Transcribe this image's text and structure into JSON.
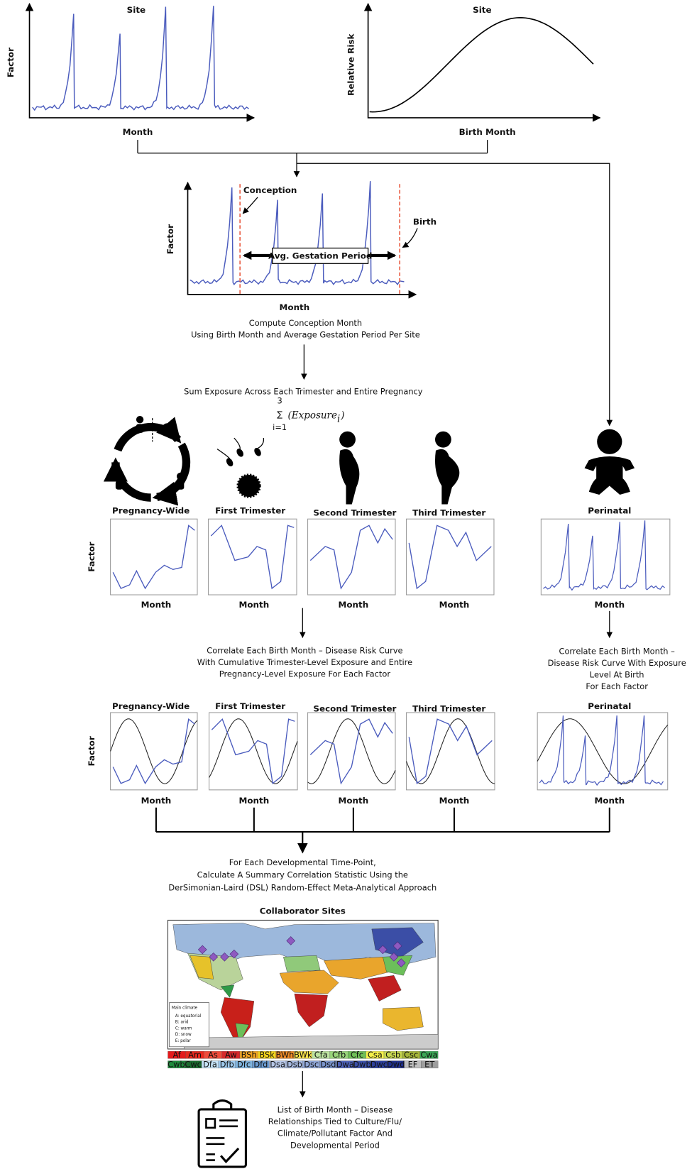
{
  "panel_a": {
    "title": "Site",
    "y_label": "Factor",
    "x_label": "Month"
  },
  "panel_b": {
    "title": "Site",
    "y_label": "Relative Risk",
    "x_label": "Birth Month"
  },
  "gestation_panel": {
    "y_label": "Factor",
    "x_label": "Month",
    "conception": "Conception",
    "birth": "Birth",
    "period": "Avg. Gestation Period"
  },
  "step1": [
    "Compute Conception Month",
    "Using Birth Month and Average Gestation Period Per Site"
  ],
  "step2": "Sum Exposure Across Each Trimester and Entire Pregnancy",
  "formula": {
    "symbol": "∑",
    "upper": "3",
    "lower": "i=1",
    "term": "(Exposure",
    "subscript": "i",
    "close": ")"
  },
  "exposure_panels": {
    "y_label": "Factor",
    "panels": [
      {
        "title": "Pregnancy-Wide",
        "x_label": "Month"
      },
      {
        "title": "First Trimester",
        "x_label": "Month"
      },
      {
        "title": "Second Trimester",
        "x_label": "Month"
      },
      {
        "title": "Third Trimester",
        "x_label": "Month"
      },
      {
        "title": "Perinatal",
        "x_label": "Month"
      }
    ]
  },
  "step3": [
    "Correlate Each Birth Month – Disease Risk Curve",
    "With Cumulative Trimester-Level Exposure and Entire",
    "Pregnancy-Level Exposure For Each Factor"
  ],
  "step3_perinatal": [
    "Correlate Each Birth Month –",
    "Disease Risk Curve With Exposure",
    "Level At Birth",
    "For Each Factor"
  ],
  "correlation_panels": {
    "y_label": "Factor",
    "panels": [
      {
        "title": "Pregnancy-Wide",
        "x_label": "Month"
      },
      {
        "title": "First Trimester",
        "x_label": "Month"
      },
      {
        "title": "Second Trimester",
        "x_label": "Month"
      },
      {
        "title": "Third Trimester",
        "x_label": "Month"
      },
      {
        "title": "Perinatal",
        "x_label": "Month"
      }
    ]
  },
  "step4": [
    "For Each Developmental Time-Point,",
    "Calculate A Summary Correlation Statistic Using the",
    "DerSimonian-Laird (DSL) Random-Effect Meta-Analytical Approach"
  ],
  "map": {
    "title": "Collaborator Sites",
    "legend_title": "Main climate",
    "legend": [
      "A: equatorial",
      "B: arid",
      "C: warm",
      "D: snow",
      "E: polar"
    ],
    "codes_row1": [
      "Af",
      "Am",
      "As",
      "Aw",
      "BSh",
      "BSk",
      "BWh",
      "BWk",
      "Cfa",
      "Cfb",
      "Cfc",
      "Csa",
      "Csb",
      "Csc",
      "Cwa"
    ],
    "codes_row2": [
      "Cwb",
      "Cwc",
      "Dfa",
      "Dfb",
      "Dfc",
      "Dfd",
      "Dsa",
      "Dsb",
      "Dsc",
      "Dsd",
      "Dwa",
      "Dwb",
      "Dwc",
      "Dwd",
      "EF",
      "ET"
    ]
  },
  "output": [
    "List of Birth Month – Disease",
    "Relationships Tied to Culture/Flu/",
    "Climate/Pollutant Factor And",
    "Developmental Period"
  ]
}
